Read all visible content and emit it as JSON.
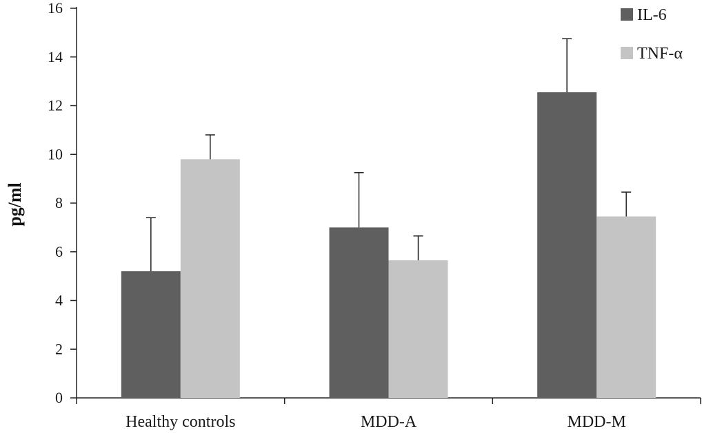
{
  "chart_data": {
    "type": "bar",
    "title": "",
    "xlabel": "",
    "ylabel": "pg/ml",
    "ylim": [
      0,
      16
    ],
    "yticks": [
      0,
      2,
      4,
      6,
      8,
      10,
      12,
      14,
      16
    ],
    "ytick_labels": [
      "0",
      "2",
      "4",
      "6",
      "8",
      "10",
      "12",
      "14",
      "16"
    ],
    "categories": [
      "Healthy controls",
      "MDD-A",
      "MDD-M"
    ],
    "legend_position": "top-right",
    "grid": false,
    "series": [
      {
        "name": "IL-6",
        "color": "#5f5f5f",
        "values": [
          5.2,
          7.0,
          12.55
        ],
        "errors": [
          2.2,
          2.25,
          2.2
        ]
      },
      {
        "name": "TNF-α",
        "color": "#c4c4c4",
        "values": [
          9.8,
          5.65,
          7.45
        ],
        "errors": [
          1.0,
          1.0,
          1.0
        ]
      }
    ]
  }
}
